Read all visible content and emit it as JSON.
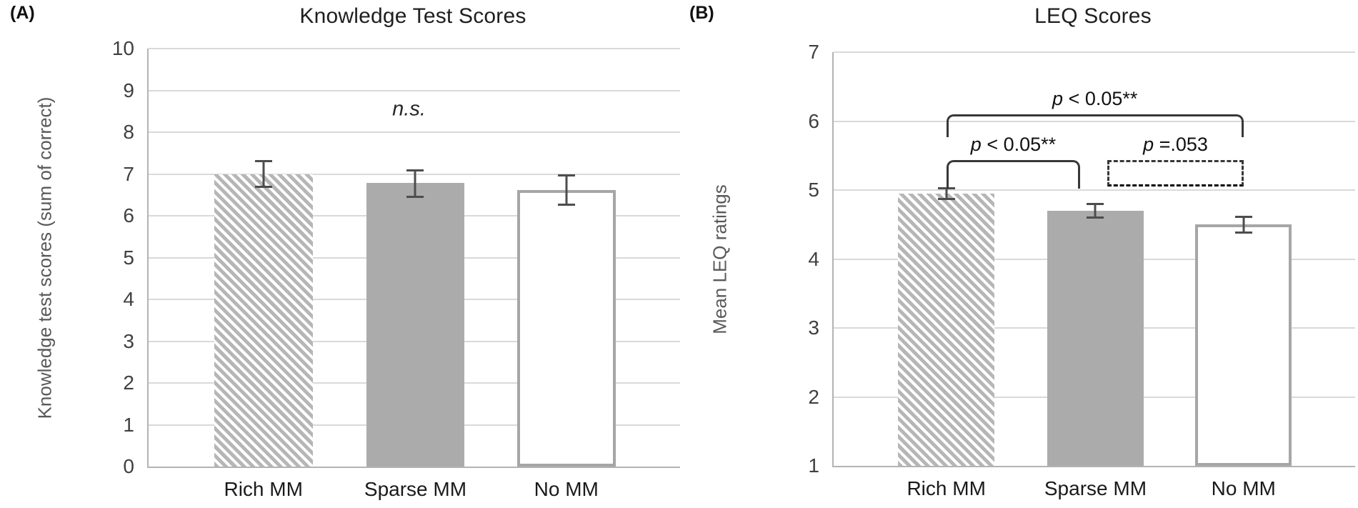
{
  "colors": {
    "grid": "#d9d9d9",
    "axis": "#b3b3b3",
    "tick": "#404040",
    "xtick": "#1a1a1a",
    "ytitle": "#595959",
    "title": "#1f1f1f",
    "bar-solid": "#ababab",
    "bar-hatch": "#b6b6b6",
    "bar-outline": "#a6a6a6",
    "err": "#4d4d4d",
    "bracket": "#383838"
  },
  "chart_data": [
    {
      "type": "bar",
      "panel_label": "(A)",
      "title": "Knowledge Test Scores",
      "xlabel": "",
      "ylabel": "Knowledge test scores (sum of correct)",
      "categories": [
        "Rich MM",
        "Sparse MM",
        "No MM"
      ],
      "values": [
        7.0,
        6.78,
        6.62
      ],
      "error_upper": [
        7.31,
        7.1,
        6.98
      ],
      "error_lower": [
        6.68,
        6.45,
        6.25
      ],
      "bar_styles": [
        "hatched-diagonal",
        "solid-gray",
        "white-outlined"
      ],
      "bar_centers_pct": [
        21.6,
        50.2,
        78.6
      ],
      "bar_width_pct": 18.5,
      "ylim": [
        0,
        10
      ],
      "y_ticks": [
        0,
        1,
        2,
        3,
        4,
        5,
        6,
        7,
        8,
        9,
        10
      ],
      "grid": true,
      "legend": "none",
      "annotations": [
        {
          "text": "n.s.",
          "x_pct": 49,
          "y": 8.55,
          "italic": true
        }
      ],
      "brackets": []
    },
    {
      "type": "bar",
      "panel_label": "(B)",
      "title": "LEQ Scores",
      "xlabel": "",
      "ylabel": "Mean LEQ ratings",
      "categories": [
        "Rich MM",
        "Sparse MM",
        "No MM"
      ],
      "values": [
        4.95,
        4.7,
        4.5
      ],
      "error_upper": [
        5.03,
        4.8,
        4.62
      ],
      "error_lower": [
        4.87,
        4.6,
        4.38
      ],
      "bar_styles": [
        "hatched-diagonal",
        "solid-gray",
        "white-outlined"
      ],
      "bar_centers_pct": [
        21.6,
        50.2,
        78.6
      ],
      "bar_width_pct": 18.5,
      "ylim": [
        1,
        7
      ],
      "y_ticks": [
        1,
        2,
        3,
        4,
        5,
        6,
        7
      ],
      "grid": true,
      "legend": "none",
      "annotations": [],
      "brackets": [
        {
          "label": "p < 0.05**",
          "x1_pct": 21.6,
          "x2_pct": 78.6,
          "y": 6.1,
          "leg_y": 5.77,
          "line_style": "solid"
        },
        {
          "label": "p < 0.05**",
          "x1_pct": 21.6,
          "x2_pct": 47.3,
          "y": 5.44,
          "leg_y": 5.02,
          "line_style": "solid"
        },
        {
          "label": "p =.053",
          "x1_pct": 52.5,
          "x2_pct": 78.6,
          "y": 5.44,
          "leg_y": 5.05,
          "line_style": "dashed"
        }
      ]
    }
  ]
}
